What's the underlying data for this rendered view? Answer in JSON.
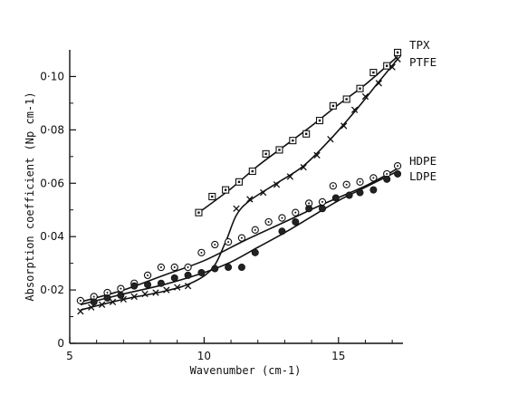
{
  "chart_data": {
    "type": "scatter",
    "xlabel": "Wavenumber (cm-1)",
    "ylabel": "Absorption coefficient (Np cm-1)",
    "xlim": [
      5,
      17.4
    ],
    "ylim": [
      0,
      0.11
    ],
    "x_ticks": [
      {
        "value": 5,
        "label": "5"
      },
      {
        "value": 10,
        "label": "10"
      },
      {
        "value": 15,
        "label": "15"
      }
    ],
    "y_ticks": [
      {
        "value": 0,
        "label": "0"
      },
      {
        "value": 0.02,
        "label": "0·02"
      },
      {
        "value": 0.04,
        "label": "0·04"
      },
      {
        "value": 0.06,
        "label": "0·06"
      },
      {
        "value": 0.08,
        "label": "0·08"
      },
      {
        "value": 0.1,
        "label": "0·10"
      }
    ],
    "grid": false,
    "series": [
      {
        "name": "TPX",
        "marker": "square",
        "points": [
          [
            9.8,
            0.049
          ],
          [
            10.3,
            0.055
          ],
          [
            10.8,
            0.0575
          ],
          [
            11.3,
            0.0605
          ],
          [
            11.8,
            0.0645
          ],
          [
            12.3,
            0.071
          ],
          [
            12.8,
            0.0725
          ],
          [
            13.3,
            0.076
          ],
          [
            13.8,
            0.0785
          ],
          [
            14.3,
            0.0835
          ],
          [
            14.8,
            0.089
          ],
          [
            15.3,
            0.0915
          ],
          [
            15.8,
            0.0955
          ],
          [
            16.3,
            0.1015
          ],
          [
            16.8,
            0.104
          ],
          [
            17.2,
            0.109
          ]
        ],
        "curve": [
          [
            9.8,
            0.049
          ],
          [
            11.0,
            0.058
          ],
          [
            12.0,
            0.0665
          ],
          [
            13.0,
            0.074
          ],
          [
            14.0,
            0.0815
          ],
          [
            15.0,
            0.0895
          ],
          [
            16.0,
            0.097
          ],
          [
            17.2,
            0.1075
          ]
        ]
      },
      {
        "name": "PTFE",
        "marker": "cross",
        "points": [
          [
            5.4,
            0.012
          ],
          [
            5.8,
            0.0135
          ],
          [
            6.2,
            0.0145
          ],
          [
            6.6,
            0.0155
          ],
          [
            7.0,
            0.0165
          ],
          [
            7.4,
            0.0175
          ],
          [
            7.8,
            0.0185
          ],
          [
            8.2,
            0.019
          ],
          [
            8.6,
            0.02
          ],
          [
            9.0,
            0.021
          ],
          [
            9.4,
            0.0215
          ],
          [
            11.2,
            0.0505
          ],
          [
            11.7,
            0.054
          ],
          [
            12.2,
            0.0565
          ],
          [
            12.7,
            0.0595
          ],
          [
            13.2,
            0.0625
          ],
          [
            13.7,
            0.066
          ],
          [
            14.2,
            0.0705
          ],
          [
            14.7,
            0.0765
          ],
          [
            15.2,
            0.0815
          ],
          [
            15.6,
            0.0875
          ],
          [
            16.0,
            0.0925
          ],
          [
            16.5,
            0.0975
          ],
          [
            17.0,
            0.1035
          ],
          [
            17.2,
            0.1065
          ]
        ],
        "curve": [
          [
            5.4,
            0.0125
          ],
          [
            7.0,
            0.0165
          ],
          [
            8.5,
            0.0195
          ],
          [
            9.5,
            0.0225
          ],
          [
            10.3,
            0.028
          ],
          [
            10.8,
            0.038
          ],
          [
            11.2,
            0.048
          ],
          [
            11.7,
            0.0535
          ],
          [
            12.7,
            0.06
          ],
          [
            13.7,
            0.0665
          ],
          [
            14.7,
            0.0765
          ],
          [
            15.7,
            0.088
          ],
          [
            16.5,
            0.098
          ],
          [
            17.2,
            0.1065
          ]
        ]
      },
      {
        "name": "HDPE",
        "marker": "open-circle",
        "points": [
          [
            5.4,
            0.016
          ],
          [
            5.9,
            0.0175
          ],
          [
            6.4,
            0.019
          ],
          [
            6.9,
            0.0205
          ],
          [
            7.4,
            0.0225
          ],
          [
            7.9,
            0.0255
          ],
          [
            8.4,
            0.0285
          ],
          [
            8.9,
            0.0285
          ],
          [
            9.4,
            0.0285
          ],
          [
            9.9,
            0.034
          ],
          [
            10.4,
            0.037
          ],
          [
            10.9,
            0.038
          ],
          [
            11.4,
            0.0395
          ],
          [
            11.9,
            0.0425
          ],
          [
            12.4,
            0.0455
          ],
          [
            12.9,
            0.047
          ],
          [
            13.4,
            0.049
          ],
          [
            13.9,
            0.0525
          ],
          [
            14.4,
            0.053
          ],
          [
            14.8,
            0.059
          ],
          [
            15.3,
            0.0595
          ],
          [
            15.8,
            0.0605
          ],
          [
            16.3,
            0.062
          ],
          [
            16.8,
            0.0635
          ],
          [
            17.2,
            0.0665
          ]
        ],
        "curve": [
          [
            5.4,
            0.0155
          ],
          [
            7.0,
            0.02
          ],
          [
            8.5,
            0.0255
          ],
          [
            10.0,
            0.031
          ],
          [
            11.5,
            0.0385
          ],
          [
            13.0,
            0.0455
          ],
          [
            14.5,
            0.0525
          ],
          [
            16.0,
            0.059
          ],
          [
            17.2,
            0.0655
          ]
        ]
      },
      {
        "name": "LDPE",
        "marker": "filled-circle",
        "points": [
          [
            5.9,
            0.0155
          ],
          [
            6.4,
            0.017
          ],
          [
            6.9,
            0.018
          ],
          [
            7.4,
            0.0215
          ],
          [
            7.9,
            0.022
          ],
          [
            8.4,
            0.0225
          ],
          [
            8.9,
            0.0245
          ],
          [
            9.4,
            0.0255
          ],
          [
            9.9,
            0.0265
          ],
          [
            10.4,
            0.028
          ],
          [
            10.9,
            0.0285
          ],
          [
            11.4,
            0.0285
          ],
          [
            11.9,
            0.034
          ],
          [
            12.9,
            0.042
          ],
          [
            13.4,
            0.0455
          ],
          [
            13.9,
            0.0505
          ],
          [
            14.4,
            0.0505
          ],
          [
            14.9,
            0.0545
          ],
          [
            15.4,
            0.0555
          ],
          [
            15.8,
            0.0565
          ],
          [
            16.3,
            0.0575
          ],
          [
            16.8,
            0.0615
          ],
          [
            17.2,
            0.0635
          ]
        ],
        "curve": [
          [
            5.4,
            0.0145
          ],
          [
            7.0,
            0.0185
          ],
          [
            8.5,
            0.022
          ],
          [
            10.0,
            0.0265
          ],
          [
            11.0,
            0.0305
          ],
          [
            12.0,
            0.036
          ],
          [
            13.0,
            0.0415
          ],
          [
            14.0,
            0.0475
          ],
          [
            15.0,
            0.0535
          ],
          [
            16.0,
            0.0585
          ],
          [
            17.2,
            0.0645
          ]
        ]
      }
    ]
  }
}
